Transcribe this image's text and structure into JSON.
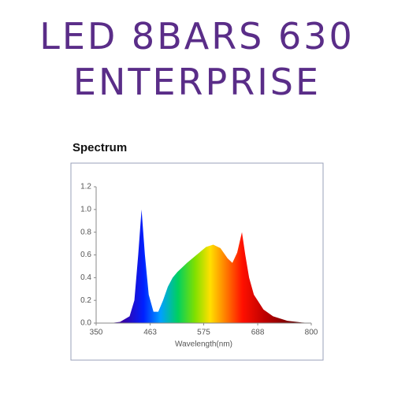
{
  "header": {
    "line1": "LED 8BARS 630",
    "line2": "ENTERPRISE"
  },
  "chart_data": {
    "type": "area",
    "title": "Spectrum",
    "xlabel": "Wavelength(nm)",
    "x": [
      380,
      400,
      420,
      430,
      438,
      445,
      452,
      460,
      470,
      480,
      490,
      500,
      510,
      520,
      540,
      560,
      580,
      595,
      610,
      625,
      635,
      645,
      655,
      662,
      670,
      680,
      700,
      720,
      750,
      780,
      800
    ],
    "values": [
      0,
      0.01,
      0.06,
      0.2,
      0.6,
      1.0,
      0.6,
      0.25,
      0.1,
      0.1,
      0.2,
      0.32,
      0.4,
      0.45,
      0.53,
      0.6,
      0.67,
      0.69,
      0.66,
      0.57,
      0.53,
      0.62,
      0.8,
      0.6,
      0.4,
      0.25,
      0.12,
      0.06,
      0.02,
      0.005,
      0
    ],
    "xlim": [
      350,
      800
    ],
    "xticks": [
      350,
      463,
      575,
      688,
      800
    ],
    "ylim": [
      0,
      1.2
    ],
    "yticks": [
      {
        "value": 0,
        "label": "0.0"
      },
      {
        "value": 0.2,
        "label": "0.2"
      },
      {
        "value": 0.4,
        "label": "0.4"
      },
      {
        "value": 0.6,
        "label": "0.6"
      },
      {
        "value": 0.8,
        "label": "0.8"
      },
      {
        "value": 1.0,
        "label": "1.0"
      },
      {
        "value": 1.2,
        "label": "1.2"
      }
    ]
  }
}
